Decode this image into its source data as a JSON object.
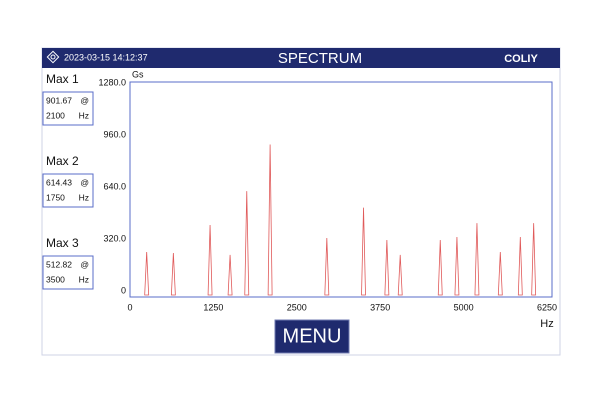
{
  "header": {
    "datetime": "2023-03-15  14:12:37",
    "title": "SPECTRUM",
    "logo": "COLIY"
  },
  "maxima": [
    {
      "label": "Max 1",
      "value": "901.67",
      "sep": "@",
      "freq": "2100",
      "unit": "Hz"
    },
    {
      "label": "Max 2",
      "value": "614.43",
      "sep": "@",
      "freq": "1750",
      "unit": "Hz"
    },
    {
      "label": "Max 3",
      "value": "512.82",
      "sep": "@",
      "freq": "3500",
      "unit": "Hz"
    }
  ],
  "chart_data": {
    "type": "spike",
    "y_label": "Gs",
    "x_label": "Hz",
    "color": "#e05a5a",
    "x": [
      250,
      650,
      1200,
      1500,
      1750,
      2100,
      2950,
      3500,
      3850,
      4050,
      4650,
      4900,
      5200,
      5550,
      5850,
      6050
    ],
    "values": [
      240,
      234,
      406,
      222,
      614.43,
      901.67,
      326,
      512.82,
      314,
      222,
      314,
      332,
      418,
      240,
      332,
      418
    ],
    "xlim": [
      0,
      6250
    ],
    "xticks": [
      0,
      1250,
      2500,
      3750,
      5000,
      6250
    ],
    "ylim": [
      0,
      1280
    ],
    "yticks": [
      0,
      {
        "value": 320,
        "label": "320.0"
      },
      {
        "value": 640,
        "label": "640.0"
      },
      {
        "value": 960,
        "label": "960.0"
      },
      {
        "value": 1280,
        "label": "1280.0"
      }
    ]
  },
  "menu": "MENU"
}
